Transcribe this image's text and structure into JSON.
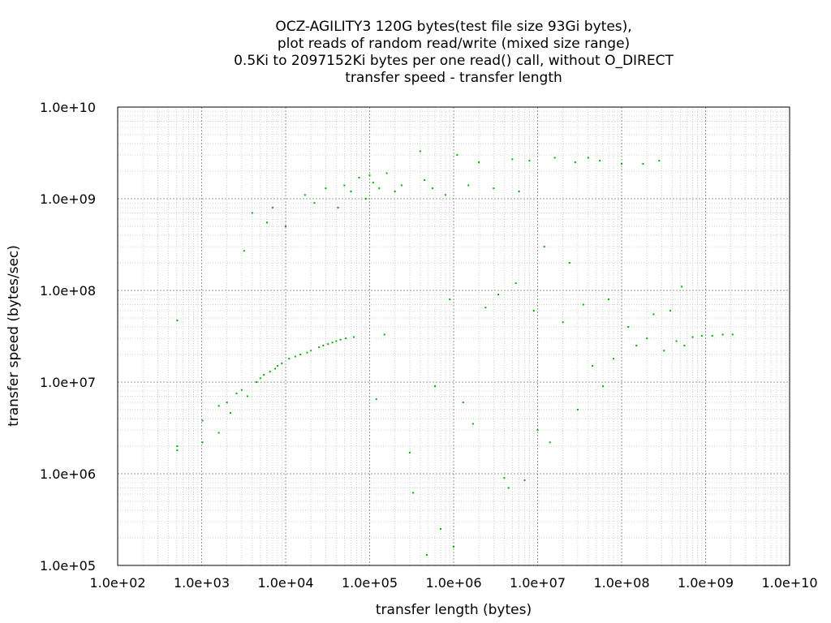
{
  "chart_data": {
    "type": "scatter",
    "title_lines": [
      "OCZ-AGILITY3 120G bytes(test file size 93Gi bytes),",
      "plot reads of random read/write (mixed size range)",
      "0.5Ki to 2097152Ki bytes per one read() call, without O_DIRECT",
      "transfer speed - transfer length"
    ],
    "xlabel": "transfer length (bytes)",
    "ylabel": "transfer speed (bytes/sec)",
    "x_scale": "log",
    "y_scale": "log",
    "xlim": [
      100,
      10000000000
    ],
    "ylim": [
      100000,
      10000000000
    ],
    "x_ticks": [
      {
        "value": 100,
        "label": "1.0e+02"
      },
      {
        "value": 1000,
        "label": "1.0e+03"
      },
      {
        "value": 10000,
        "label": "1.0e+04"
      },
      {
        "value": 100000,
        "label": "1.0e+05"
      },
      {
        "value": 1000000,
        "label": "1.0e+06"
      },
      {
        "value": 10000000,
        "label": "1.0e+07"
      },
      {
        "value": 100000000,
        "label": "1.0e+08"
      },
      {
        "value": 1000000000,
        "label": "1.0e+09"
      },
      {
        "value": 10000000000,
        "label": "1.0e+10"
      }
    ],
    "y_ticks": [
      {
        "value": 100000,
        "label": "1.0e+05"
      },
      {
        "value": 1000000,
        "label": "1.0e+06"
      },
      {
        "value": 10000000,
        "label": "1.0e+07"
      },
      {
        "value": 100000000,
        "label": "1.0e+08"
      },
      {
        "value": 1000000000,
        "label": "1.0e+09"
      },
      {
        "value": 10000000000,
        "label": "1.0e+10"
      }
    ],
    "grid": true,
    "point_color": "#00b000",
    "series": [
      {
        "points": [
          [
            512,
            1800000
          ],
          [
            512,
            2000000
          ],
          [
            512,
            47000000
          ],
          [
            1024,
            3800000
          ],
          [
            1024,
            2200000
          ],
          [
            1600,
            5500000
          ],
          [
            1600,
            2800000
          ],
          [
            2000,
            6000000
          ],
          [
            2200,
            4600000
          ],
          [
            2600,
            7500000
          ],
          [
            3000,
            8200000
          ],
          [
            3200,
            270000000
          ],
          [
            3500,
            7000000
          ],
          [
            4000,
            700000000
          ],
          [
            4500,
            10000000
          ],
          [
            5000,
            11000000
          ],
          [
            5500,
            12000000
          ],
          [
            6000,
            550000000
          ],
          [
            6500,
            13000000
          ],
          [
            7000,
            800000000
          ],
          [
            7500,
            14000000
          ],
          [
            8000,
            15000000
          ],
          [
            9000,
            16000000
          ],
          [
            10000,
            500000000
          ],
          [
            11000,
            18000000
          ],
          [
            13000,
            19000000
          ],
          [
            15000,
            20000000
          ],
          [
            17000,
            1100000000
          ],
          [
            18000,
            21000000
          ],
          [
            20000,
            22000000
          ],
          [
            22000,
            900000000
          ],
          [
            25000,
            24000000
          ],
          [
            28000,
            25000000
          ],
          [
            30000,
            1300000000
          ],
          [
            32000,
            26000000
          ],
          [
            36000,
            27000000
          ],
          [
            40000,
            28000000
          ],
          [
            42000,
            800000000
          ],
          [
            45000,
            29000000
          ],
          [
            50000,
            1400000000
          ],
          [
            52000,
            30000000
          ],
          [
            60000,
            1200000000
          ],
          [
            65000,
            31000000
          ],
          [
            75000,
            1700000000
          ],
          [
            90000,
            1000000000
          ],
          [
            100000,
            1800000000
          ],
          [
            110000,
            1500000000
          ],
          [
            120000,
            6500000
          ],
          [
            130000,
            1300000000
          ],
          [
            150000,
            33000000
          ],
          [
            160000,
            1900000000
          ],
          [
            200000,
            1200000000
          ],
          [
            240000,
            1400000000
          ],
          [
            300000,
            1700000
          ],
          [
            330000,
            620000
          ],
          [
            400000,
            3300000000
          ],
          [
            450000,
            1600000000
          ],
          [
            480000,
            130000
          ],
          [
            560000,
            1300000000
          ],
          [
            600000,
            9000000
          ],
          [
            700000,
            250000
          ],
          [
            800000,
            1100000000
          ],
          [
            900000,
            80000000
          ],
          [
            1000000,
            160000
          ],
          [
            1100000,
            3000000000
          ],
          [
            1300000,
            6000000
          ],
          [
            1500000,
            1400000000
          ],
          [
            1700000,
            3500000
          ],
          [
            2000000,
            2500000000
          ],
          [
            2400000,
            65000000
          ],
          [
            3000000,
            1300000000
          ],
          [
            3400000,
            90000000
          ],
          [
            4000000,
            900000
          ],
          [
            4500000,
            700000
          ],
          [
            5000000,
            2700000000
          ],
          [
            5500000,
            120000000
          ],
          [
            6000000,
            1200000000
          ],
          [
            7000000,
            850000
          ],
          [
            8000000,
            2600000000
          ],
          [
            9000000,
            60000000
          ],
          [
            10000000,
            3000000
          ],
          [
            12000000,
            300000000
          ],
          [
            14000000,
            2200000
          ],
          [
            16000000,
            2800000000
          ],
          [
            20000000,
            45000000
          ],
          [
            24000000,
            200000000
          ],
          [
            28000000,
            2500000000
          ],
          [
            30000000,
            5000000
          ],
          [
            35000000,
            70000000
          ],
          [
            40000000,
            2800000000
          ],
          [
            45000000,
            15000000
          ],
          [
            55000000,
            2600000000
          ],
          [
            60000000,
            9000000
          ],
          [
            70000000,
            80000000
          ],
          [
            80000000,
            18000000
          ],
          [
            100000000,
            2400000000
          ],
          [
            120000000,
            40000000
          ],
          [
            150000000,
            25000000
          ],
          [
            180000000,
            2400000000
          ],
          [
            200000000,
            30000000
          ],
          [
            240000000,
            55000000
          ],
          [
            280000000,
            2600000000
          ],
          [
            320000000,
            22000000
          ],
          [
            380000000,
            60000000
          ],
          [
            450000000,
            28000000
          ],
          [
            520000000,
            110000000
          ],
          [
            560000000,
            25000000
          ],
          [
            700000000,
            31000000
          ],
          [
            900000000,
            32000000
          ],
          [
            1200000000,
            32000000
          ],
          [
            1600000000,
            33000000
          ],
          [
            2097152000,
            33000000
          ]
        ]
      }
    ]
  }
}
